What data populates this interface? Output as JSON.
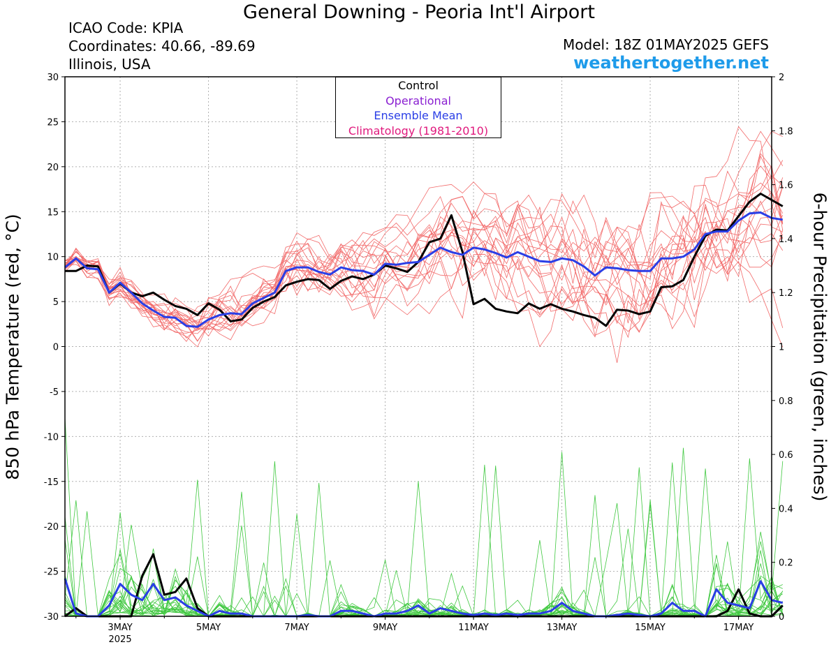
{
  "header": {
    "title": "General Downing - Peoria Int'l Airport",
    "icao": "ICAO Code: KPIA",
    "coordinates": "Coordinates: 40.66, -89.69",
    "region": "Illinois, USA",
    "model": "Model: 18Z 01MAY2025 GEFS",
    "site": "weathertogether.net"
  },
  "legend": {
    "control": {
      "label": "Control",
      "color": "#000000"
    },
    "operational": {
      "label": "Operational",
      "color": "#8a1fd1"
    },
    "ensemble_mean": {
      "label": "Ensemble Mean",
      "color": "#2a3ee6"
    },
    "climatology": {
      "label": "Climatology (1981-2010)",
      "color": "#e0197d"
    }
  },
  "colors": {
    "member_temp": "#f26a6a",
    "member_precip": "#3fc83f",
    "control": "#000000",
    "ensemble_mean": "#2a3ee6",
    "grid": "#b0b0b0"
  },
  "chart_data": {
    "type": "line",
    "ylabel_left": "850 hPa Temperature (red, °C)",
    "ylabel_right": "6-hour Precipitation (green, inches)",
    "y_left_ticks": [
      "30",
      "25",
      "20",
      "15",
      "10",
      "5",
      "0",
      "-5",
      "-10",
      "-15",
      "-20",
      "-25",
      "-30"
    ],
    "y_right_ticks": [
      "2",
      "1.8",
      "1.6",
      "1.4",
      "1.2",
      "1",
      "0.8",
      "0.6",
      "0.4",
      "0.2",
      "0"
    ],
    "ylim_left": [
      -30,
      30
    ],
    "ylim_right": [
      0,
      2
    ],
    "xlim_days": [
      1.75,
      17.75
    ],
    "x_ticks": [
      {
        "day": 3,
        "label": "3MAY",
        "sub": "2025"
      },
      {
        "day": 5,
        "label": "5MAY",
        "sub": ""
      },
      {
        "day": 7,
        "label": "7MAY",
        "sub": ""
      },
      {
        "day": 9,
        "label": "9MAY",
        "sub": ""
      },
      {
        "day": 11,
        "label": "11MAY",
        "sub": ""
      },
      {
        "day": 13,
        "label": "13MAY",
        "sub": ""
      },
      {
        "day": 15,
        "label": "15MAY",
        "sub": ""
      },
      {
        "day": 17,
        "label": "17MAY",
        "sub": ""
      }
    ],
    "grid": true,
    "series": [
      {
        "name": "Control",
        "kind": "temperature",
        "x_start": 1.75,
        "x_step": 0.25,
        "values": [
          8.4,
          8.4,
          9.0,
          8.9,
          6.0,
          7.0,
          6.0,
          5.6,
          6.0,
          5.2,
          4.5,
          4.2,
          3.5,
          4.8,
          4.1,
          2.8,
          3.0,
          4.3,
          5.0,
          5.5,
          6.8,
          7.2,
          7.5,
          7.4,
          6.4,
          7.3,
          7.8,
          7.5,
          8.0,
          9.0,
          8.7,
          8.3,
          9.4,
          11.6,
          12.0,
          14.6,
          10.5,
          4.7,
          5.3,
          4.2,
          3.9,
          3.7,
          4.8,
          4.2,
          4.7,
          4.2,
          3.9,
          3.5,
          3.2,
          2.3,
          4.1,
          4.0,
          3.6,
          3.9,
          6.6,
          6.7,
          7.4,
          10.0,
          12.3,
          13.0,
          12.9,
          14.5,
          16.1,
          17.0,
          16.3,
          15.6
        ]
      },
      {
        "name": "Ensemble Mean",
        "kind": "temperature",
        "x_start": 1.75,
        "x_step": 0.25,
        "values": [
          8.8,
          9.8,
          8.7,
          8.6,
          6.0,
          7.1,
          6.0,
          4.8,
          4.0,
          3.3,
          3.2,
          2.3,
          2.2,
          3.0,
          3.5,
          3.7,
          3.6,
          4.8,
          5.4,
          6.0,
          8.4,
          8.8,
          8.8,
          8.3,
          8.0,
          8.8,
          8.5,
          8.4,
          8.0,
          9.2,
          9.1,
          9.3,
          9.4,
          10.2,
          11.0,
          10.5,
          10.2,
          11.0,
          10.8,
          10.4,
          9.9,
          10.5,
          10.0,
          9.5,
          9.4,
          9.8,
          9.6,
          8.9,
          7.9,
          8.8,
          8.7,
          8.5,
          8.4,
          8.4,
          9.8,
          9.8,
          10.0,
          10.8,
          12.5,
          12.8,
          12.8,
          14.0,
          14.8,
          14.9,
          14.3,
          14.1
        ]
      },
      {
        "name": "Control",
        "kind": "precipitation",
        "x_start": 1.75,
        "x_step": 0.25,
        "values": [
          0,
          0.03,
          0,
          0,
          0,
          0,
          0,
          0.15,
          0.23,
          0.08,
          0.09,
          0.14,
          0.03,
          0,
          0,
          0,
          0,
          0,
          0,
          0,
          0,
          0,
          0,
          0,
          0,
          0,
          0,
          0,
          0,
          0,
          0,
          0,
          0,
          0,
          0,
          0,
          0,
          0,
          0,
          0,
          0,
          0,
          0,
          0,
          0,
          0,
          0,
          0,
          0,
          0,
          0,
          0,
          0,
          0,
          0,
          0,
          0,
          0,
          0,
          0,
          0.02,
          0.1,
          0.01,
          0,
          0,
          0.04
        ]
      },
      {
        "name": "Ensemble Mean",
        "kind": "precipitation",
        "x_start": 1.75,
        "x_step": 0.25,
        "values": [
          0.14,
          0.01,
          0,
          0,
          0.04,
          0.12,
          0.08,
          0.06,
          0.12,
          0.06,
          0.07,
          0.04,
          0.02,
          0,
          0.02,
          0.01,
          0.01,
          0,
          0,
          0,
          0,
          0,
          0.005,
          0,
          0,
          0.02,
          0.02,
          0.01,
          0,
          0.01,
          0.01,
          0.02,
          0.04,
          0.01,
          0.03,
          0.02,
          0.01,
          0.005,
          0.01,
          0.005,
          0.01,
          0.005,
          0.01,
          0.01,
          0.02,
          0.05,
          0.02,
          0.01,
          0,
          0,
          0.005,
          0.01,
          0.005,
          0,
          0.01,
          0.05,
          0.02,
          0.02,
          0,
          0.1,
          0.05,
          0.04,
          0.03,
          0.13,
          0.06,
          0.05
        ]
      }
    ],
    "members_temperature_count": 20,
    "members_precip_count": 20
  }
}
